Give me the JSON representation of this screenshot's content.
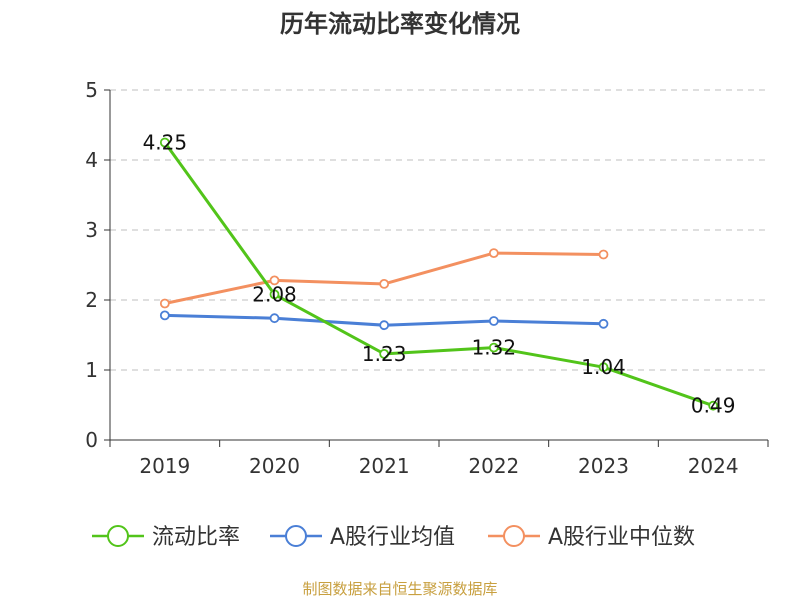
{
  "chart_data": {
    "type": "line",
    "title": "历年流动比率变化情况",
    "categories": [
      "2019",
      "2020",
      "2021",
      "2022",
      "2023",
      "2024"
    ],
    "yticks": [
      "0",
      "1",
      "2",
      "3",
      "4",
      "5"
    ],
    "ylim": [
      0,
      5
    ],
    "grid": true,
    "legend_position": "bottom",
    "series": [
      {
        "name": "流动比率",
        "color": "#52c41a",
        "values": [
          4.25,
          2.08,
          1.23,
          1.32,
          1.04,
          0.49
        ],
        "labels": [
          "4.25",
          "2.08",
          "1.23",
          "1.32",
          "1.04",
          "0.49"
        ]
      },
      {
        "name": "A股行业均值",
        "color": "#4a7fd6",
        "values": [
          1.78,
          1.74,
          1.64,
          1.7,
          1.66,
          null
        ]
      },
      {
        "name": "A股行业中位数",
        "color": "#f39060",
        "values": [
          1.95,
          2.28,
          2.23,
          2.67,
          2.65,
          null
        ]
      }
    ]
  },
  "source": "制图数据来自恒生聚源数据库"
}
